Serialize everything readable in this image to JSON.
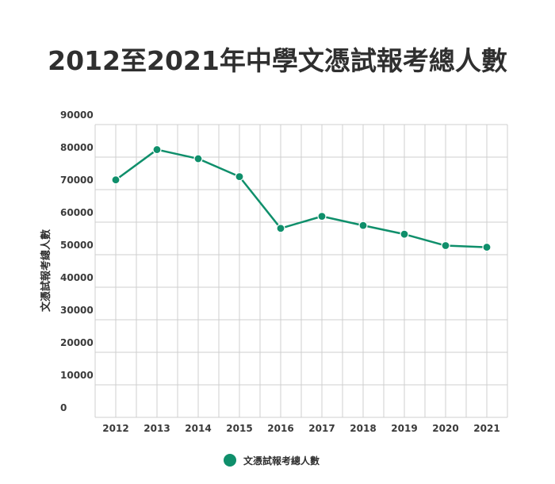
{
  "colors": {
    "series": "#0f8f6b",
    "grid": "#cfcfcf",
    "text": "#2f2f2f"
  },
  "chart_data": {
    "type": "line",
    "title": "2012至2021年中學文憑試報考總人數",
    "xlabel": "",
    "ylabel": "文憑試報考總人數",
    "categories": [
      "2012",
      "2013",
      "2014",
      "2015",
      "2016",
      "2017",
      "2018",
      "2019",
      "2020",
      "2021"
    ],
    "series": [
      {
        "name": "文憑試報考總人數",
        "values": [
          73000,
          82300,
          79500,
          74000,
          58100,
          61800,
          59000,
          56300,
          52800,
          52300
        ]
      }
    ],
    "ylim": [
      0,
      90000
    ],
    "yticks": [
      "0",
      "10000",
      "20000",
      "30000",
      "40000",
      "50000",
      "60000",
      "70000",
      "80000",
      "90000"
    ],
    "grid": true,
    "legend_position": "bottom-center"
  }
}
